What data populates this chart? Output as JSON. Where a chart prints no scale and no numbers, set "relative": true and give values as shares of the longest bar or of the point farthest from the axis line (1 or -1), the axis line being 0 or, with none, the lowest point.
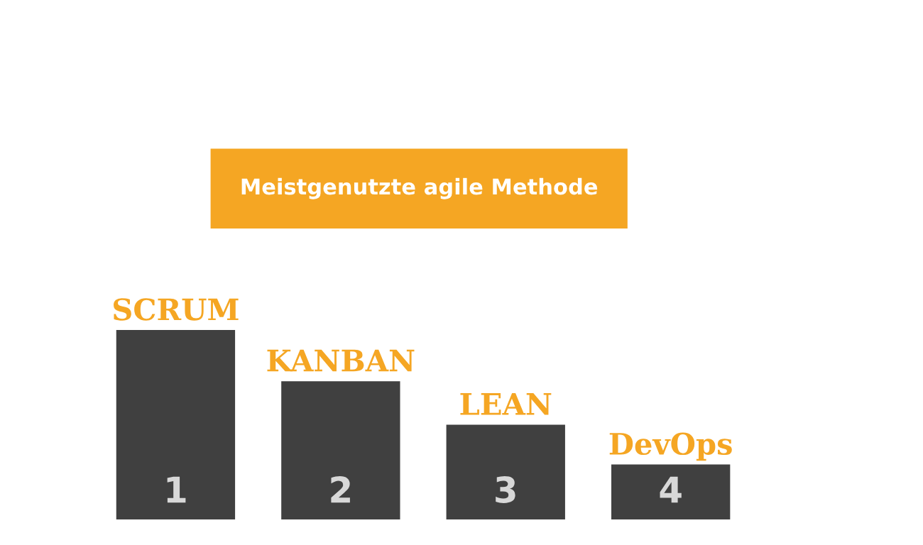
{
  "chart_data": {
    "type": "bar",
    "title": "Meistgenutzte agile Methode",
    "relative": true,
    "categories": [
      "SCRUM",
      "KANBAN",
      "LEAN",
      "DevOps"
    ],
    "values": [
      1,
      0.73,
      0.5,
      0.29
    ],
    "color": "#404040",
    "annotations": [
      "1",
      "2",
      "3",
      "4"
    ]
  }
}
